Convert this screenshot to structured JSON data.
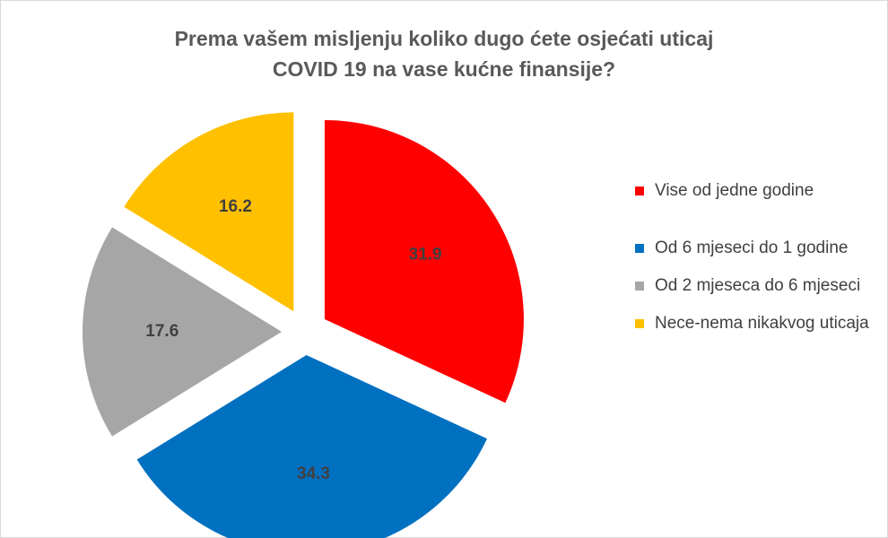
{
  "chart_data": {
    "type": "pie",
    "title_lines": [
      "Prema vašem misljenju koliko dugo ćete osjećati uticaj",
      "COVID 19 na vase kućne finansije?"
    ],
    "slices": [
      {
        "label": "Vise od jedne godine",
        "value": 31.9,
        "value_label": "31.9",
        "color": "#ff0000"
      },
      {
        "label": "Od 6 mjeseci do 1 godine",
        "value": 34.3,
        "value_label": "34.3",
        "color": "#0070c0"
      },
      {
        "label": "Od 2 mjeseca do 6 mjeseci",
        "value": 17.6,
        "value_label": "17.6",
        "color": "#a6a6a6"
      },
      {
        "label": "Nece-nema nikakvog uticaja",
        "value": 16.2,
        "value_label": "16.2",
        "color": "#ffc000"
      }
    ],
    "exploded": true,
    "legend_position": "right",
    "data_label_color": "#404040"
  }
}
